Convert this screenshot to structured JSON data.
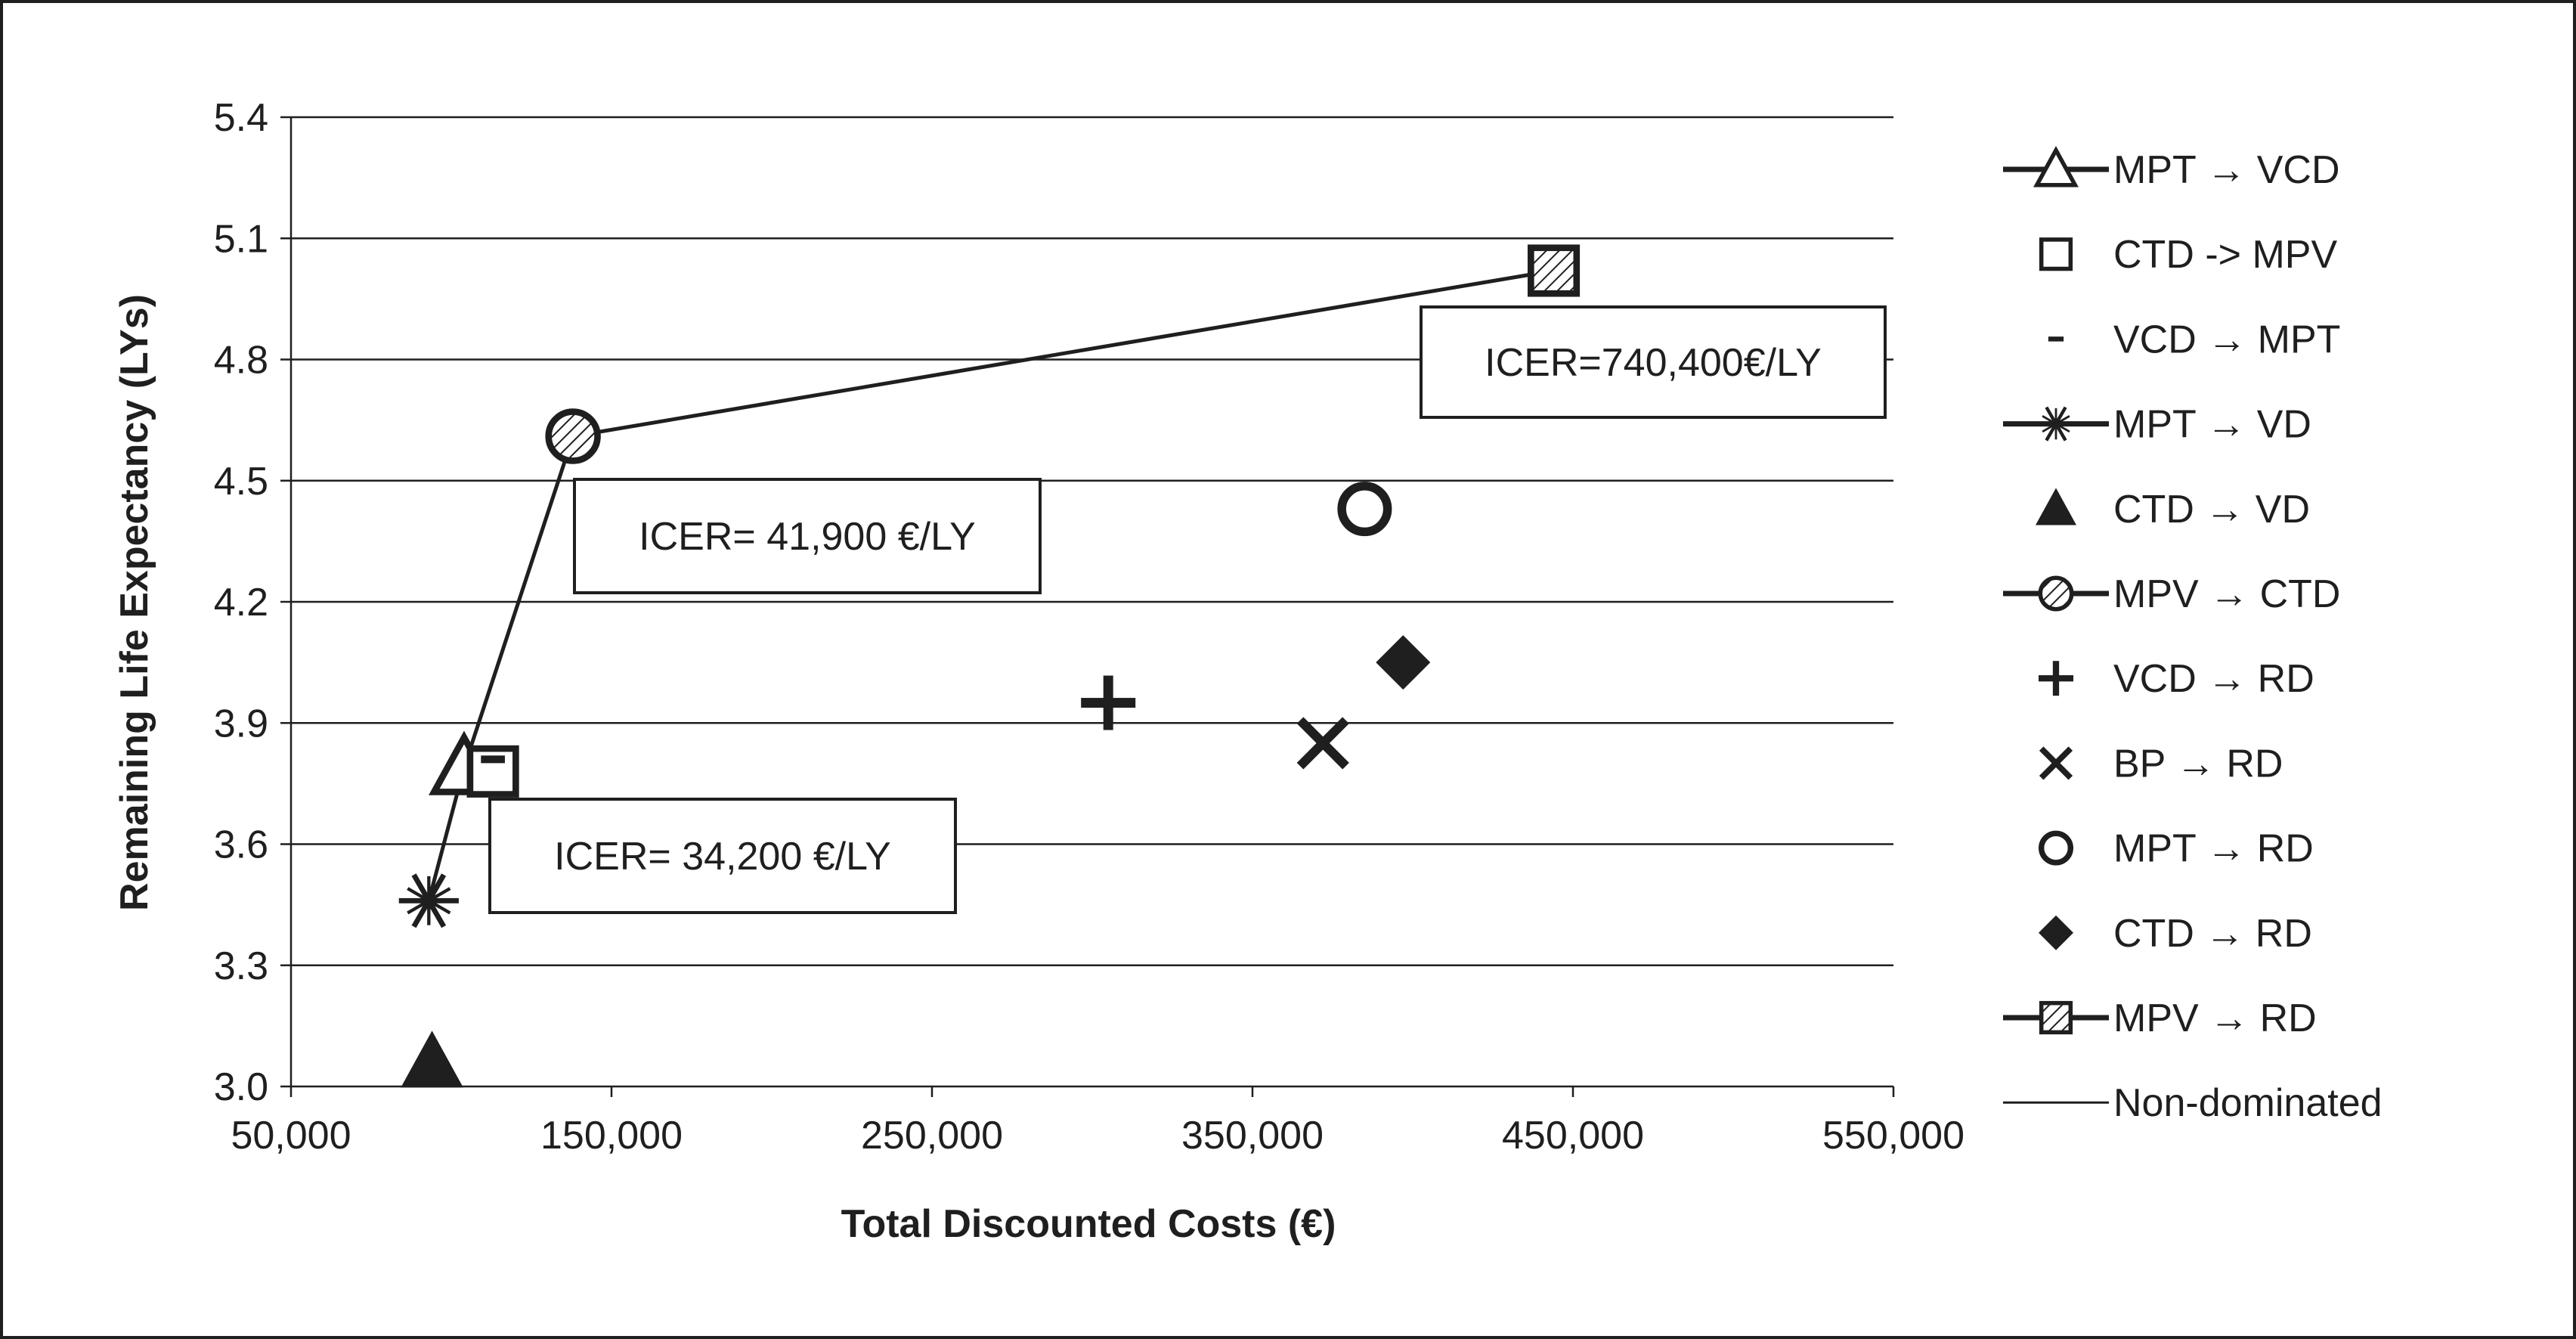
{
  "chart_data": {
    "type": "scatter",
    "title": "",
    "xlabel": "Total Discounted Costs (€)",
    "ylabel": "Remaining Life Expectancy (LYs)",
    "xlim": [
      50000,
      550000
    ],
    "ylim": [
      3.0,
      5.4
    ],
    "x_ticks": [
      50000,
      150000,
      250000,
      350000,
      450000,
      550000
    ],
    "x_tick_labels": [
      "50,000",
      "150,000",
      "250,000",
      "350,000",
      "450,000",
      "550,000"
    ],
    "y_ticks": [
      3.0,
      3.3,
      3.6,
      3.9,
      4.2,
      4.5,
      4.8,
      5.1,
      5.4
    ],
    "y_tick_labels": [
      "3.0",
      "3.3",
      "3.6",
      "3.9",
      "4.2",
      "4.5",
      "4.8",
      "5.1",
      "5.4"
    ],
    "grid": "horizontal",
    "legend_position": "right",
    "series": [
      {
        "name": "MPT  → VCD",
        "marker": "open-triangle",
        "x": 104000,
        "y": 3.79
      },
      {
        "name": "CTD -> MPV",
        "marker": "open-square",
        "x": 113000,
        "y": 3.78
      },
      {
        "name": "VCD  → MPT",
        "marker": "dash",
        "x": 113000,
        "y": 3.81
      },
      {
        "name": "MPT → VD",
        "marker": "asterisk",
        "x": 93000,
        "y": 3.46
      },
      {
        "name": "CTD → VD",
        "marker": "filled-triangle",
        "x": 94000,
        "y": 3.06
      },
      {
        "name": "MPV → CTD",
        "marker": "hatched-circle",
        "x": 138000,
        "y": 4.61
      },
      {
        "name": "VCD → RD",
        "marker": "plus",
        "x": 305000,
        "y": 3.95
      },
      {
        "name": "BP → RD",
        "marker": "x",
        "x": 372000,
        "y": 3.85
      },
      {
        "name": "MPT → RD",
        "marker": "open-circle",
        "x": 385000,
        "y": 4.43
      },
      {
        "name": "CTD → RD",
        "marker": "filled-diamond",
        "x": 397000,
        "y": 4.05
      },
      {
        "name": "MPV → RD",
        "marker": "hatched-square",
        "x": 444000,
        "y": 5.02
      }
    ],
    "frontier": {
      "name": "Non-dominated",
      "points": [
        [
          93000,
          3.46
        ],
        [
          104000,
          3.79
        ],
        [
          138000,
          4.61
        ],
        [
          444000,
          5.02
        ]
      ]
    },
    "annotations": [
      {
        "text": "ICER= 34,200 €/LY"
      },
      {
        "text": "ICER= 41,900 €/LY"
      },
      {
        "text": "ICER=740,400€/LY"
      }
    ]
  }
}
